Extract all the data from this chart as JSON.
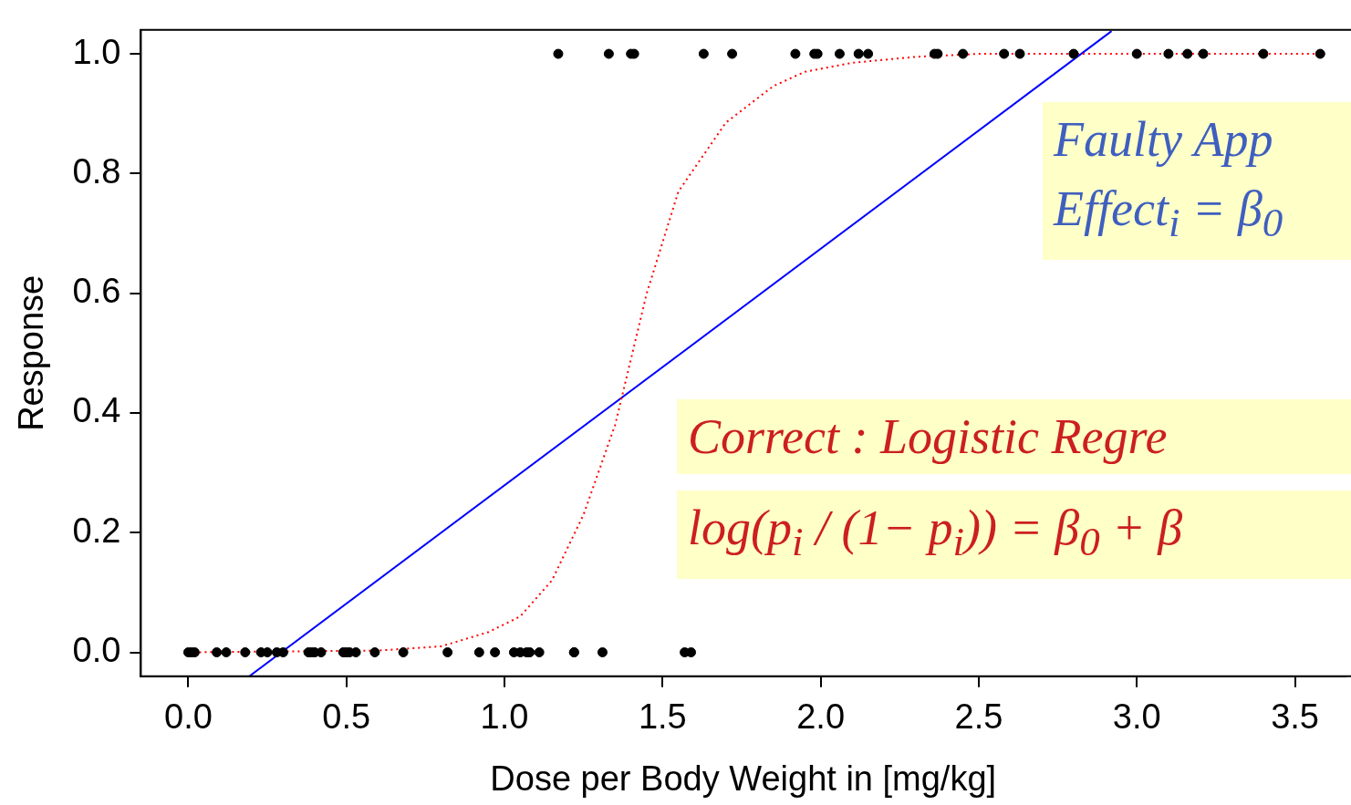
{
  "chart_data": {
    "type": "scatter",
    "xlabel": "Dose per Body Weight in [mg/kg]",
    "ylabel": "Response",
    "xlim": [
      -0.15,
      3.66
    ],
    "ylim": [
      -0.04,
      1.04
    ],
    "xticks": [
      {
        "value": 0,
        "label": "0.0"
      },
      0.5,
      {
        "value": 1,
        "label": "1.0"
      },
      1.5,
      {
        "value": 2,
        "label": "2.0"
      },
      2.5,
      {
        "value": 3,
        "label": "3.0"
      },
      3.5
    ],
    "yticks": [
      {
        "value": 0,
        "label": "0.0"
      },
      0.2,
      0.4,
      0.6,
      0.8,
      {
        "value": 1,
        "label": "1.0"
      }
    ],
    "grid": false,
    "legend": false,
    "series": [
      {
        "color": "#000000",
        "marker": "circle",
        "x": [
          0,
          0.01,
          0.02,
          0.09,
          0.12,
          0.18,
          0.23,
          0.25,
          0.28,
          0.3,
          0.38,
          0.39,
          0.4,
          0.42,
          0.49,
          0.5,
          0.51,
          0.53,
          0.59,
          0.68,
          0.82,
          0.92,
          0.97,
          1.03,
          1.05,
          1.07,
          1.08,
          1.11,
          1.22,
          1.22,
          1.31,
          1.57,
          1.59,
          1.17,
          1.33,
          1.4,
          1.41,
          1.63,
          1.72,
          1.92,
          1.98,
          1.99,
          2.06,
          2.12,
          2.15,
          2.36,
          2.37,
          2.45,
          2.58,
          2.63,
          2.8,
          3,
          3.1,
          3.16,
          3.21,
          3.4,
          3.58
        ],
        "values": [
          0,
          0,
          0,
          0,
          0,
          0,
          0,
          0,
          0,
          0,
          0,
          0,
          0,
          0,
          0,
          0,
          0,
          0,
          0,
          0,
          0,
          0,
          0,
          0,
          0,
          0,
          0,
          0,
          0,
          0,
          0,
          0,
          0,
          1,
          1,
          1,
          1,
          1,
          1,
          1,
          1,
          1,
          1,
          1,
          1,
          1,
          1,
          1,
          1,
          1,
          1,
          1,
          1,
          1,
          1,
          1,
          1
        ]
      },
      {
        "type": "line",
        "color": "#ff0000",
        "marker": "none",
        "line_style": "dotted",
        "x": [
          0,
          0.6,
          0.8,
          0.95,
          1.05,
          1.15,
          1.25,
          1.35,
          1.45,
          1.55,
          1.7,
          1.85,
          1.95,
          2.1,
          2.3,
          2.5,
          3.58
        ],
        "values": [
          0,
          0.003,
          0.01,
          0.034,
          0.06,
          0.12,
          0.23,
          0.38,
          0.6,
          0.77,
          0.885,
          0.946,
          0.97,
          0.985,
          0.995,
          1,
          1
        ]
      },
      {
        "type": "line",
        "color": "#0000ff",
        "marker": "none",
        "line_style": "solid",
        "x": [
          0.193,
          2.92
        ],
        "values": [
          -0.04,
          1.038
        ]
      }
    ],
    "annotations": [
      "Faulty App",
      "Effect$_{i}$ = β$_{0}$",
      "Correct : Logistic Regre",
      "log(p$_{i}$ / (1− p$_{i}$)) = β$_{0}$ + β"
    ]
  }
}
